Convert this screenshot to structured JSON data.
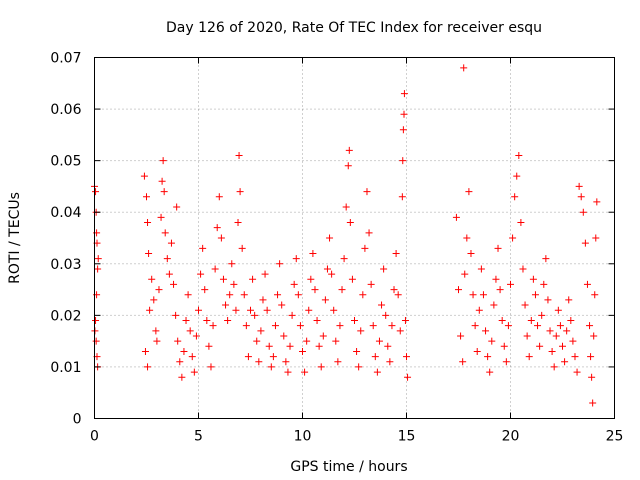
{
  "chart_data": {
    "type": "scatter",
    "title": "Day 126 of 2020, Rate Of TEC Index for receiver esqu",
    "xlabel": "GPS time / hours",
    "ylabel": "ROTI / TECUs",
    "xlim": [
      0,
      25
    ],
    "ylim": [
      0,
      0.07
    ],
    "xticks": [
      0,
      5,
      10,
      15,
      20,
      25
    ],
    "xtick_labels": [
      "0",
      "5",
      "10",
      "15",
      "20",
      "25"
    ],
    "yticks": [
      0,
      0.01,
      0.02,
      0.03,
      0.04,
      0.05,
      0.06,
      0.07
    ],
    "ytick_labels": [
      "0",
      "0.01",
      "0.02",
      "0.03",
      "0.04",
      "0.05",
      "0.06",
      "0.07"
    ],
    "grid": true,
    "marker": "+",
    "color": "#ff0000",
    "series": [
      {
        "name": "ROTI",
        "points": [
          [
            0.0,
            0.045
          ],
          [
            0.05,
            0.044
          ],
          [
            0.08,
            0.04
          ],
          [
            0.1,
            0.036
          ],
          [
            0.12,
            0.034
          ],
          [
            0.15,
            0.029
          ],
          [
            0.1,
            0.024
          ],
          [
            0.05,
            0.019
          ],
          [
            0.08,
            0.015
          ],
          [
            0.12,
            0.012
          ],
          [
            0.15,
            0.01
          ],
          [
            0.02,
            0.017
          ],
          [
            0.18,
            0.031
          ],
          [
            2.4,
            0.047
          ],
          [
            2.5,
            0.043
          ],
          [
            2.55,
            0.038
          ],
          [
            2.6,
            0.032
          ],
          [
            2.45,
            0.013
          ],
          [
            2.55,
            0.01
          ],
          [
            2.65,
            0.021
          ],
          [
            2.75,
            0.027
          ],
          [
            2.85,
            0.023
          ],
          [
            2.95,
            0.017
          ],
          [
            3.0,
            0.015
          ],
          [
            3.1,
            0.025
          ],
          [
            3.2,
            0.039
          ],
          [
            3.25,
            0.046
          ],
          [
            3.3,
            0.05
          ],
          [
            3.35,
            0.044
          ],
          [
            3.4,
            0.036
          ],
          [
            3.5,
            0.031
          ],
          [
            3.6,
            0.028
          ],
          [
            3.7,
            0.034
          ],
          [
            3.8,
            0.026
          ],
          [
            3.9,
            0.02
          ],
          [
            4.0,
            0.015
          ],
          [
            4.1,
            0.011
          ],
          [
            4.2,
            0.008
          ],
          [
            4.3,
            0.013
          ],
          [
            4.4,
            0.019
          ],
          [
            3.95,
            0.041
          ],
          [
            4.5,
            0.024
          ],
          [
            4.6,
            0.017
          ],
          [
            4.7,
            0.012
          ],
          [
            4.8,
            0.009
          ],
          [
            4.9,
            0.016
          ],
          [
            5.0,
            0.021
          ],
          [
            5.1,
            0.028
          ],
          [
            5.2,
            0.033
          ],
          [
            5.3,
            0.025
          ],
          [
            5.4,
            0.019
          ],
          [
            5.5,
            0.014
          ],
          [
            5.6,
            0.01
          ],
          [
            5.7,
            0.018
          ],
          [
            5.8,
            0.029
          ],
          [
            5.9,
            0.037
          ],
          [
            6.0,
            0.043
          ],
          [
            6.1,
            0.035
          ],
          [
            6.2,
            0.027
          ],
          [
            6.3,
            0.022
          ],
          [
            6.4,
            0.019
          ],
          [
            6.5,
            0.024
          ],
          [
            6.6,
            0.03
          ],
          [
            6.7,
            0.026
          ],
          [
            6.8,
            0.021
          ],
          [
            6.9,
            0.038
          ],
          [
            6.95,
            0.051
          ],
          [
            7.0,
            0.044
          ],
          [
            7.1,
            0.033
          ],
          [
            7.2,
            0.024
          ],
          [
            7.3,
            0.018
          ],
          [
            7.4,
            0.012
          ],
          [
            7.5,
            0.021
          ],
          [
            7.6,
            0.027
          ],
          [
            7.7,
            0.02
          ],
          [
            7.8,
            0.015
          ],
          [
            7.9,
            0.011
          ],
          [
            8.0,
            0.017
          ],
          [
            8.1,
            0.023
          ],
          [
            8.2,
            0.028
          ],
          [
            8.3,
            0.021
          ],
          [
            8.4,
            0.014
          ],
          [
            8.5,
            0.01
          ],
          [
            8.6,
            0.012
          ],
          [
            8.7,
            0.018
          ],
          [
            8.8,
            0.024
          ],
          [
            8.9,
            0.03
          ],
          [
            9.0,
            0.022
          ],
          [
            9.1,
            0.016
          ],
          [
            9.2,
            0.011
          ],
          [
            9.3,
            0.009
          ],
          [
            9.4,
            0.014
          ],
          [
            9.5,
            0.02
          ],
          [
            9.6,
            0.026
          ],
          [
            9.7,
            0.031
          ],
          [
            9.8,
            0.024
          ],
          [
            9.9,
            0.018
          ],
          [
            10.0,
            0.013
          ],
          [
            10.1,
            0.009
          ],
          [
            10.2,
            0.015
          ],
          [
            10.3,
            0.021
          ],
          [
            10.4,
            0.027
          ],
          [
            10.5,
            0.032
          ],
          [
            10.6,
            0.025
          ],
          [
            10.7,
            0.019
          ],
          [
            10.8,
            0.014
          ],
          [
            10.9,
            0.01
          ],
          [
            11.0,
            0.016
          ],
          [
            11.1,
            0.023
          ],
          [
            11.2,
            0.029
          ],
          [
            11.3,
            0.035
          ],
          [
            11.4,
            0.028
          ],
          [
            11.5,
            0.021
          ],
          [
            11.6,
            0.015
          ],
          [
            11.7,
            0.011
          ],
          [
            11.8,
            0.018
          ],
          [
            11.9,
            0.025
          ],
          [
            12.0,
            0.031
          ],
          [
            12.1,
            0.041
          ],
          [
            12.2,
            0.049
          ],
          [
            12.25,
            0.052
          ],
          [
            12.3,
            0.038
          ],
          [
            12.4,
            0.027
          ],
          [
            12.5,
            0.019
          ],
          [
            12.6,
            0.013
          ],
          [
            12.7,
            0.01
          ],
          [
            12.8,
            0.017
          ],
          [
            12.9,
            0.024
          ],
          [
            13.0,
            0.033
          ],
          [
            13.1,
            0.044
          ],
          [
            13.2,
            0.036
          ],
          [
            13.3,
            0.026
          ],
          [
            13.4,
            0.018
          ],
          [
            13.5,
            0.012
          ],
          [
            13.6,
            0.009
          ],
          [
            13.7,
            0.015
          ],
          [
            13.8,
            0.022
          ],
          [
            13.9,
            0.029
          ],
          [
            14.0,
            0.02
          ],
          [
            14.1,
            0.014
          ],
          [
            14.2,
            0.011
          ],
          [
            14.3,
            0.018
          ],
          [
            14.4,
            0.025
          ],
          [
            14.5,
            0.032
          ],
          [
            14.6,
            0.024
          ],
          [
            14.7,
            0.017
          ],
          [
            14.8,
            0.043
          ],
          [
            14.82,
            0.05
          ],
          [
            14.85,
            0.056
          ],
          [
            14.88,
            0.059
          ],
          [
            14.9,
            0.063
          ],
          [
            14.95,
            0.019
          ],
          [
            15.0,
            0.012
          ],
          [
            15.05,
            0.008
          ],
          [
            17.4,
            0.039
          ],
          [
            17.5,
            0.025
          ],
          [
            17.6,
            0.016
          ],
          [
            17.7,
            0.011
          ],
          [
            17.75,
            0.068
          ],
          [
            17.8,
            0.028
          ],
          [
            17.9,
            0.035
          ],
          [
            18.0,
            0.044
          ],
          [
            18.1,
            0.032
          ],
          [
            18.2,
            0.024
          ],
          [
            18.3,
            0.018
          ],
          [
            18.4,
            0.013
          ],
          [
            18.5,
            0.021
          ],
          [
            18.6,
            0.029
          ],
          [
            18.7,
            0.024
          ],
          [
            18.8,
            0.017
          ],
          [
            18.9,
            0.012
          ],
          [
            19.0,
            0.009
          ],
          [
            19.1,
            0.015
          ],
          [
            19.2,
            0.022
          ],
          [
            19.3,
            0.027
          ],
          [
            19.4,
            0.033
          ],
          [
            19.5,
            0.025
          ],
          [
            19.6,
            0.019
          ],
          [
            19.7,
            0.014
          ],
          [
            19.8,
            0.011
          ],
          [
            19.9,
            0.018
          ],
          [
            20.0,
            0.026
          ],
          [
            20.1,
            0.035
          ],
          [
            20.2,
            0.043
          ],
          [
            20.3,
            0.047
          ],
          [
            20.4,
            0.051
          ],
          [
            20.5,
            0.038
          ],
          [
            20.6,
            0.029
          ],
          [
            20.7,
            0.022
          ],
          [
            20.8,
            0.016
          ],
          [
            20.9,
            0.012
          ],
          [
            21.0,
            0.019
          ],
          [
            21.1,
            0.027
          ],
          [
            21.2,
            0.024
          ],
          [
            21.3,
            0.018
          ],
          [
            21.4,
            0.014
          ],
          [
            21.5,
            0.02
          ],
          [
            21.6,
            0.026
          ],
          [
            21.7,
            0.031
          ],
          [
            21.8,
            0.023
          ],
          [
            21.9,
            0.017
          ],
          [
            22.0,
            0.013
          ],
          [
            22.1,
            0.01
          ],
          [
            22.2,
            0.016
          ],
          [
            22.3,
            0.021
          ],
          [
            22.4,
            0.018
          ],
          [
            22.5,
            0.014
          ],
          [
            22.6,
            0.011
          ],
          [
            22.7,
            0.017
          ],
          [
            22.8,
            0.023
          ],
          [
            22.9,
            0.019
          ],
          [
            23.0,
            0.015
          ],
          [
            23.1,
            0.012
          ],
          [
            23.2,
            0.009
          ],
          [
            23.3,
            0.045
          ],
          [
            23.4,
            0.043
          ],
          [
            23.5,
            0.04
          ],
          [
            23.6,
            0.034
          ],
          [
            23.7,
            0.026
          ],
          [
            23.8,
            0.018
          ],
          [
            23.85,
            0.012
          ],
          [
            23.9,
            0.008
          ],
          [
            23.95,
            0.003
          ],
          [
            24.0,
            0.016
          ],
          [
            24.05,
            0.024
          ],
          [
            24.1,
            0.035
          ],
          [
            24.15,
            0.042
          ]
        ]
      }
    ]
  }
}
